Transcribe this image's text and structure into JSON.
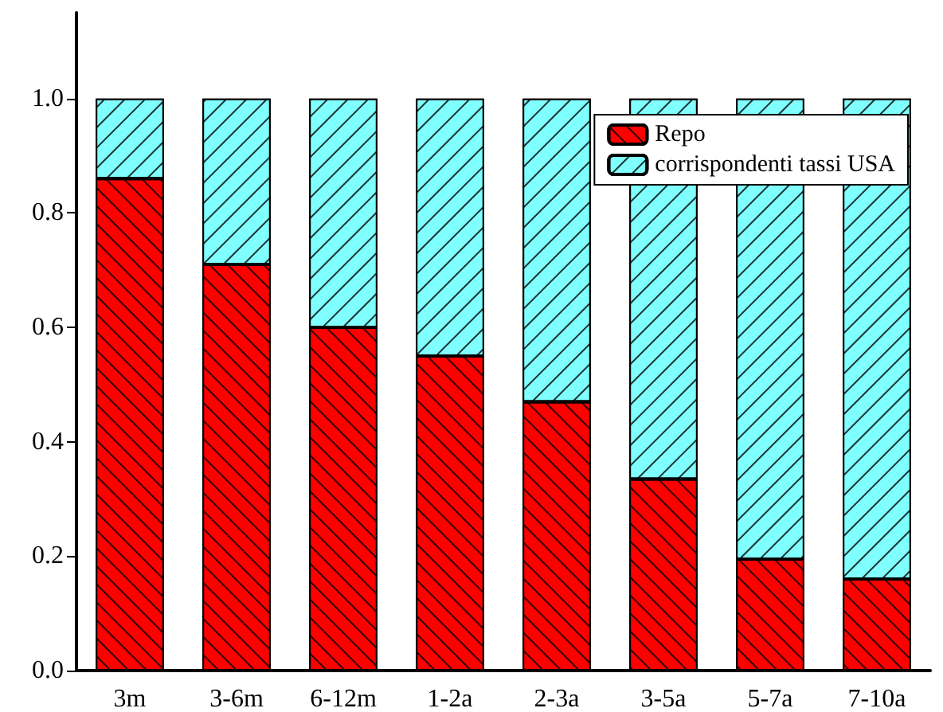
{
  "chart_data": {
    "type": "bar",
    "stacked": true,
    "categories": [
      "3m",
      "3-6m",
      "6-12m",
      "1-2a",
      "2-3a",
      "3-5a",
      "5-7a",
      "7-10a"
    ],
    "series": [
      {
        "name": "Repo",
        "color": "#ff0000",
        "values": [
          0.86,
          0.71,
          0.6,
          0.55,
          0.47,
          0.335,
          0.195,
          0.16
        ]
      },
      {
        "name": "corrispondenti tassi USA",
        "color": "#80ffff",
        "values": [
          0.14,
          0.29,
          0.4,
          0.45,
          0.53,
          0.665,
          0.805,
          0.84
        ]
      }
    ],
    "ylim": [
      0,
      1.15
    ],
    "yticks": [
      {
        "value": 0,
        "label": "0.0"
      },
      {
        "value": 0.2,
        "label": "0.2"
      },
      {
        "value": 0.4,
        "label": "0.4"
      },
      {
        "value": 0.6,
        "label": "0.6"
      },
      {
        "value": 0.8,
        "label": "0.8"
      },
      {
        "value": 1,
        "label": "1.0"
      }
    ],
    "grid": false,
    "legend": "top right"
  }
}
